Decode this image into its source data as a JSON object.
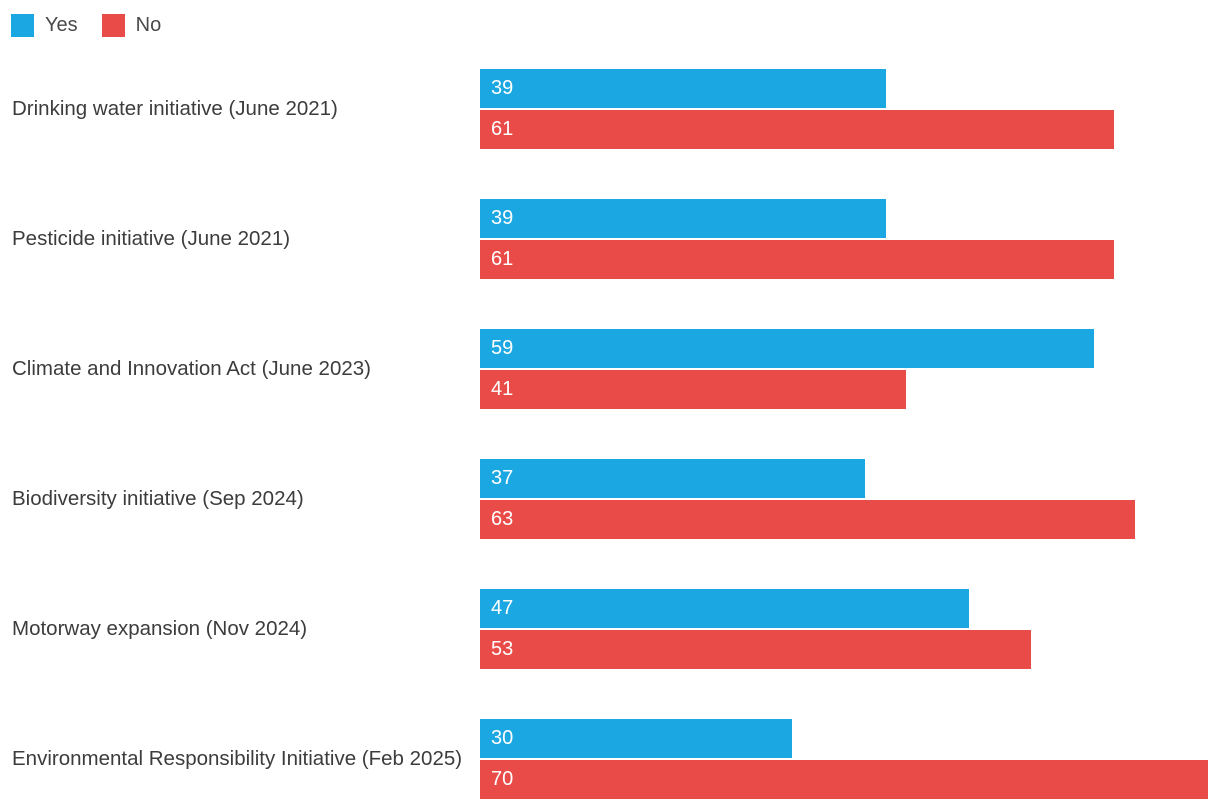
{
  "legend": {
    "items": [
      {
        "label": "Yes",
        "color": "#1BA7E2"
      },
      {
        "label": "No",
        "color": "#E94C48"
      }
    ]
  },
  "chart_data": {
    "type": "bar",
    "orientation": "horizontal",
    "title": "",
    "xlabel": "",
    "ylabel": "",
    "categories": [
      "Drinking water initiative (June 2021)",
      "Pesticide initiative (June 2021)",
      "Climate and Innovation Act (June 2023)",
      "Biodiversity initiative (Sep 2024)",
      "Motorway expansion (Nov 2024)",
      "Environmental Responsibility Initiative (Feb 2025)"
    ],
    "series": [
      {
        "name": "Yes",
        "color": "#1BA7E2",
        "values": [
          39,
          39,
          59,
          37,
          47,
          30
        ]
      },
      {
        "name": "No",
        "color": "#E94C48",
        "values": [
          61,
          61,
          41,
          63,
          53,
          70
        ]
      }
    ],
    "xlim": [
      0,
      70
    ],
    "grid": false,
    "legend_position": "top-left",
    "value_labels": "inside-bar-start"
  }
}
